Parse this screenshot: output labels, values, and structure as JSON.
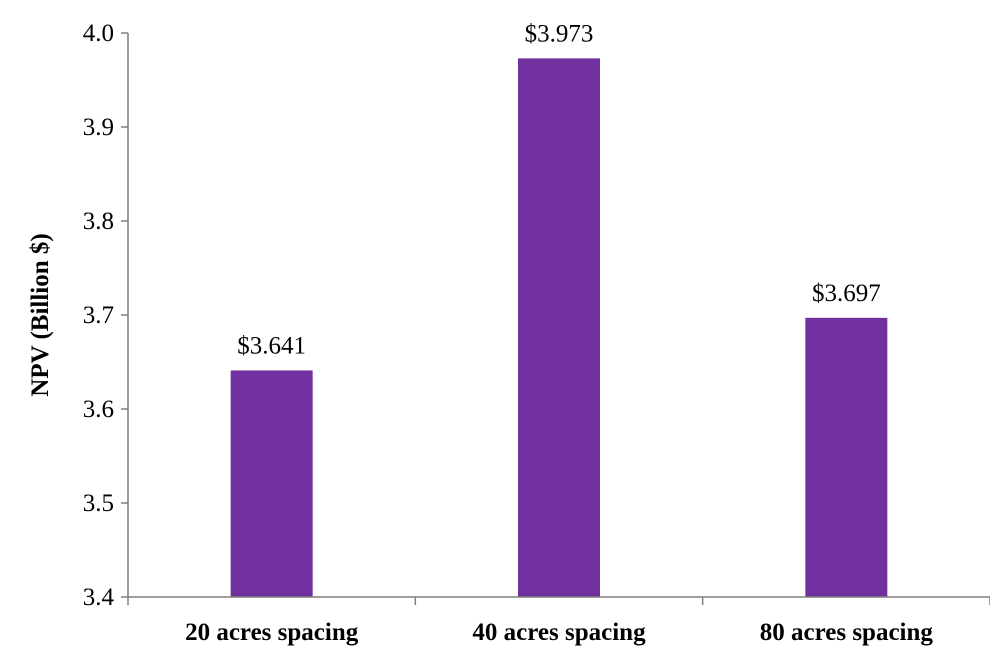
{
  "chart_data": {
    "type": "bar",
    "title": "",
    "xlabel": "",
    "ylabel": "NPV (Billion $)",
    "categories": [
      "20 acres spacing",
      "40 acres spacing",
      "80 acres spacing"
    ],
    "values": [
      3.641,
      3.973,
      3.697
    ],
    "data_labels": [
      "$3.641",
      "$3.973",
      "$3.697"
    ],
    "ylim": [
      3.4,
      4.0
    ],
    "yticks": [
      "3.4",
      "3.5",
      "3.6",
      "3.7",
      "3.8",
      "3.9",
      "4.0"
    ],
    "grid": false,
    "legend": "none",
    "bar_color": "#7030a0",
    "axis_color": "#7f7f7f"
  }
}
